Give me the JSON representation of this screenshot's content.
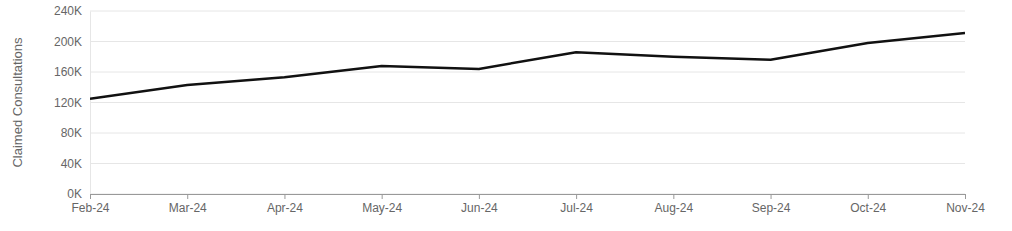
{
  "chart_data": {
    "type": "line",
    "y_label": "Claimed Consultations",
    "categories": [
      "Feb-24",
      "Mar-24",
      "Apr-24",
      "May-24",
      "Jun-24",
      "Jul-24",
      "Aug-24",
      "Sep-24",
      "Oct-24",
      "Nov-24"
    ],
    "values": [
      125000,
      143000,
      153000,
      168000,
      164000,
      186000,
      180000,
      176000,
      198000,
      211000
    ],
    "color": "#111111",
    "ylim": [
      0,
      240000
    ],
    "yticks": [
      {
        "value": 0,
        "label": "0K"
      },
      {
        "value": 40000,
        "label": "40K"
      },
      {
        "value": 80000,
        "label": "80K"
      },
      {
        "value": 120000,
        "label": "120K"
      },
      {
        "value": 160000,
        "label": "160K"
      },
      {
        "value": 200000,
        "label": "200K"
      },
      {
        "value": 240000,
        "label": "240K"
      }
    ],
    "grid": true
  }
}
